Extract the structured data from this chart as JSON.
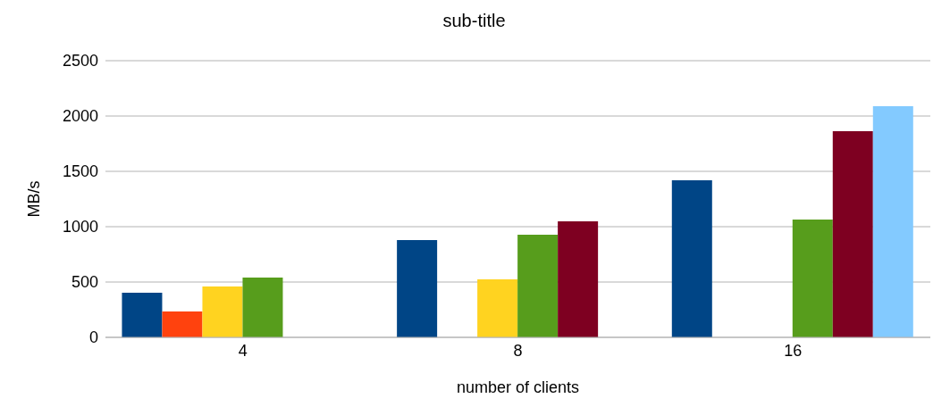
{
  "chart_data": {
    "type": "bar",
    "title": "sub-title",
    "xlabel": "number of clients",
    "ylabel": "MB/s",
    "categories": [
      "4",
      "8",
      "16"
    ],
    "series": [
      {
        "color": "#004586",
        "values": [
          403,
          879,
          1419
        ]
      },
      {
        "color": "#ff420e",
        "values": [
          234,
          null,
          null
        ]
      },
      {
        "color": "#ffd320",
        "values": [
          460,
          524,
          null
        ]
      },
      {
        "color": "#579d1c",
        "values": [
          540,
          927,
          1065
        ]
      },
      {
        "color": "#7e0021",
        "values": [
          null,
          1048,
          1863
        ]
      },
      {
        "color": "#83caff",
        "values": [
          null,
          null,
          2089
        ]
      }
    ],
    "ylim": [
      0,
      2500
    ],
    "yticks": [
      0,
      500,
      1000,
      1500,
      2000,
      2500
    ],
    "grid": "y",
    "legend": false
  }
}
